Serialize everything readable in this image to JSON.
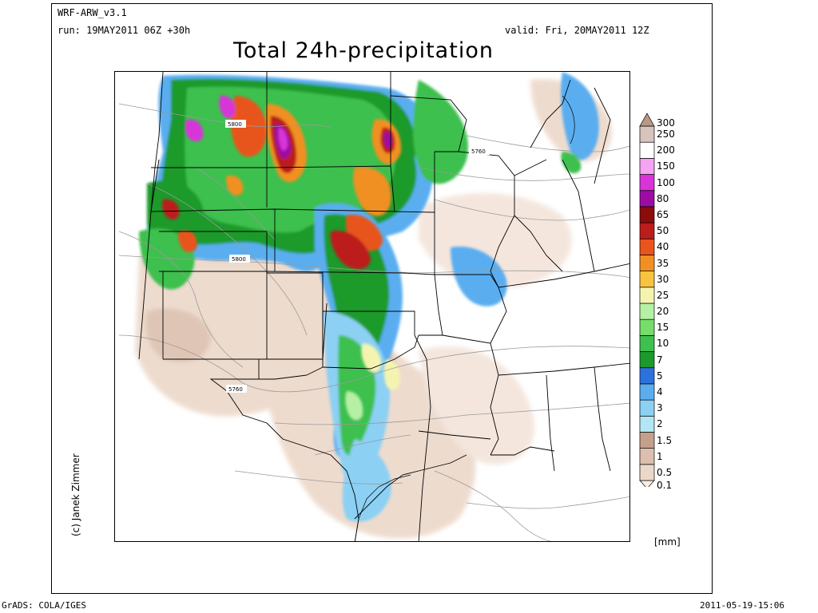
{
  "header": {
    "model": "WRF-ARW_v3.1",
    "run": "run: 19MAY2011 06Z +30h",
    "valid": "valid: Fri, 20MAY2011 12Z",
    "title": "Total 24h-precipitation"
  },
  "credit": "(c) Janek Zimmer",
  "unit": "[mm]",
  "footer": {
    "left": "GrADS: COLA/IGES",
    "right": "2011-05-19-15:06"
  },
  "contour_labels": [
    "5800",
    "5760",
    "5800",
    "5760"
  ],
  "colorbar": {
    "levels": [
      "0.1",
      "0.5",
      "1",
      "1.5",
      "2",
      "3",
      "4",
      "5",
      "7",
      "10",
      "15",
      "20",
      "25",
      "30",
      "35",
      "40",
      "50",
      "65",
      "80",
      "100",
      "150",
      "200",
      "250",
      "300"
    ],
    "colors": [
      "#fcefe6",
      "#ecd8c9",
      "#dcbfae",
      "#c4a08c",
      "#b2e6f4",
      "#8cd0f4",
      "#5aaef0",
      "#2c72dc",
      "#1c9a2c",
      "#3ec04e",
      "#76dc6c",
      "#b6f0a4",
      "#f4f4b0",
      "#f8c440",
      "#f09024",
      "#e8541c",
      "#bc1c1c",
      "#8c0c0c",
      "#9c0ca4",
      "#d834d8",
      "#f4a4f0",
      "#ffffff",
      "#d8c4bc",
      "#b89884"
    ]
  }
}
